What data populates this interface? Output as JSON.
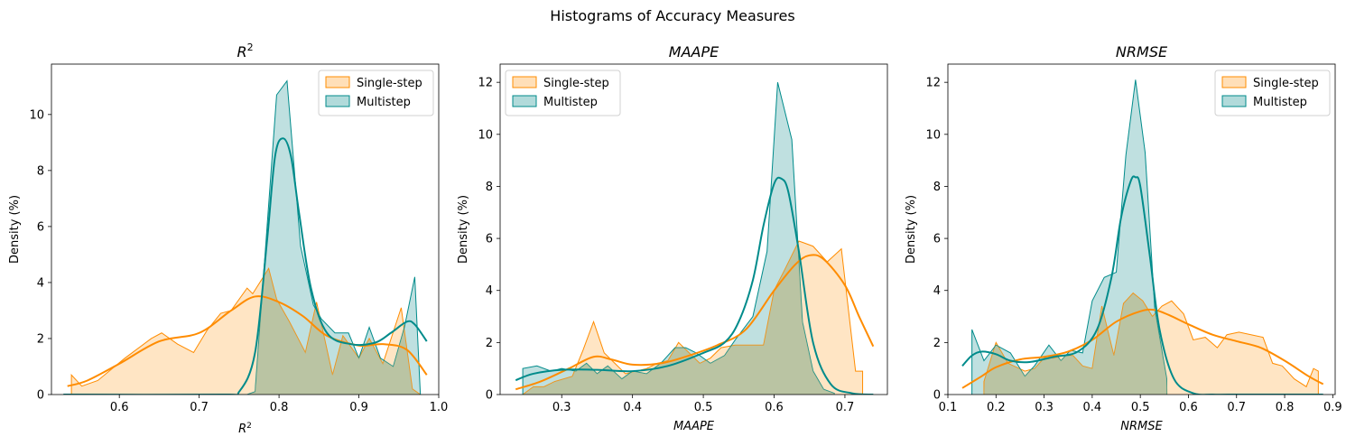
{
  "figure": {
    "suptitle": "Histograms of Accuracy Measures"
  },
  "colors": {
    "single_step_fill": "#ffdcb0",
    "single_step_line": "#ff8c00",
    "multistep_fill": "#a9d6d6",
    "multistep_line": "#008b8b"
  },
  "chart_data": [
    {
      "type": "area",
      "title": "R^2",
      "title_main": "R",
      "title_sup": "2",
      "xlabel": "R^2",
      "xlabel_main": "R",
      "xlabel_sup": "2",
      "ylabel": "Density (%)",
      "xlim": [
        0.515,
        1.0
      ],
      "ylim": [
        0,
        11.8
      ],
      "xticks": [
        0.6,
        0.7,
        0.8,
        0.9,
        1.0
      ],
      "xtick_labels": [
        "0.6",
        "0.7",
        "0.8",
        "0.9",
        "1.0"
      ],
      "yticks": [
        0,
        2,
        4,
        6,
        8,
        10
      ],
      "ytick_labels": [
        "0",
        "2",
        "4",
        "6",
        "8",
        "10"
      ],
      "legend_position": "upper right",
      "series": [
        {
          "name": "Single-step",
          "histogram": {
            "x": [
              0.54,
              0.54,
              0.553,
              0.573,
              0.607,
              0.64,
              0.653,
              0.673,
              0.693,
              0.71,
              0.727,
              0.74,
              0.76,
              0.767,
              0.787,
              0.797,
              0.813,
              0.833,
              0.847,
              0.867,
              0.88,
              0.9,
              0.913,
              0.93,
              0.953,
              0.967,
              0.977
            ],
            "y": [
              0,
              0.7,
              0.3,
              0.5,
              1.3,
              2.0,
              2.2,
              1.8,
              1.5,
              2.3,
              2.9,
              3.0,
              3.8,
              3.6,
              4.5,
              3.4,
              2.6,
              1.5,
              3.3,
              0.7,
              2.1,
              1.3,
              2.0,
              1.1,
              3.1,
              0.2,
              0
            ]
          },
          "kde": {
            "x": [
              0.535,
              0.56,
              0.6,
              0.65,
              0.7,
              0.74,
              0.77,
              0.8,
              0.83,
              0.86,
              0.9,
              0.93,
              0.96,
              0.985
            ],
            "y": [
              0.3,
              0.5,
              1.1,
              1.9,
              2.2,
              3.0,
              3.5,
              3.3,
              2.8,
              2.1,
              1.75,
              1.8,
              1.6,
              0.7
            ]
          }
        },
        {
          "name": "Multistep",
          "histogram": {
            "x": [
              0.53,
              0.76,
              0.77,
              0.797,
              0.81,
              0.827,
              0.843,
              0.853,
              0.87,
              0.887,
              0.9,
              0.913,
              0.927,
              0.943,
              0.957,
              0.97,
              0.977
            ],
            "y": [
              0,
              0,
              0.1,
              10.7,
              11.2,
              5.3,
              3.2,
              2.7,
              2.2,
              2.2,
              1.3,
              2.4,
              1.3,
              1.0,
              2.4,
              4.2,
              0
            ]
          },
          "kde": {
            "x": [
              0.53,
              0.73,
              0.75,
              0.77,
              0.785,
              0.795,
              0.805,
              0.815,
              0.825,
              0.84,
              0.86,
              0.89,
              0.92,
              0.94,
              0.96,
              0.97,
              0.985
            ],
            "y": [
              0,
              0,
              0.1,
              1.5,
              5.5,
              8.5,
              9.15,
              8.5,
              6.5,
              3.8,
              2.2,
              1.8,
              1.85,
              2.2,
              2.6,
              2.5,
              1.9
            ]
          }
        }
      ]
    },
    {
      "type": "area",
      "title": "MAAPE",
      "xlabel": "MAAPE",
      "ylabel": "Density (%)",
      "xlim": [
        0.213,
        0.76
      ],
      "ylim": [
        0,
        12.7
      ],
      "xticks": [
        0.3,
        0.4,
        0.5,
        0.6,
        0.7
      ],
      "xtick_labels": [
        "0.3",
        "0.4",
        "0.5",
        "0.6",
        "0.7"
      ],
      "yticks": [
        0,
        2,
        4,
        6,
        8,
        10,
        12
      ],
      "ytick_labels": [
        "0",
        "2",
        "4",
        "6",
        "8",
        "10",
        "12"
      ],
      "legend_position": "upper left",
      "series": [
        {
          "name": "Single-step",
          "histogram": {
            "x": [
              0.245,
              0.26,
              0.275,
              0.29,
              0.315,
              0.33,
              0.345,
              0.36,
              0.375,
              0.39,
              0.405,
              0.42,
              0.435,
              0.45,
              0.465,
              0.48,
              0.495,
              0.51,
              0.525,
              0.545,
              0.565,
              0.585,
              0.6,
              0.615,
              0.635,
              0.655,
              0.675,
              0.695,
              0.715,
              0.725,
              0.725
            ],
            "y": [
              0,
              0.3,
              0.3,
              0.5,
              0.7,
              1.7,
              2.8,
              1.6,
              1.2,
              0.8,
              0.9,
              1.0,
              1.2,
              1.3,
              2.0,
              1.6,
              1.2,
              1.4,
              1.8,
              1.9,
              1.9,
              1.9,
              4.0,
              4.8,
              5.9,
              5.7,
              5.1,
              5.6,
              0.9,
              0.9,
              0
            ]
          },
          "kde": {
            "x": [
              0.235,
              0.27,
              0.31,
              0.345,
              0.37,
              0.4,
              0.44,
              0.48,
              0.52,
              0.56,
              0.6,
              0.63,
              0.65,
              0.67,
              0.7,
              0.72,
              0.74
            ],
            "y": [
              0.2,
              0.5,
              1.0,
              1.45,
              1.35,
              1.15,
              1.2,
              1.5,
              1.9,
              2.5,
              4.0,
              5.0,
              5.35,
              5.2,
              4.2,
              3.0,
              1.85
            ]
          }
        },
        {
          "name": "Multistep",
          "histogram": {
            "x": [
              0.245,
              0.245,
              0.265,
              0.285,
              0.3,
              0.32,
              0.335,
              0.35,
              0.365,
              0.385,
              0.4,
              0.42,
              0.44,
              0.46,
              0.475,
              0.49,
              0.51,
              0.53,
              0.545,
              0.57,
              0.59,
              0.605,
              0.625,
              0.64,
              0.655,
              0.67,
              0.685,
              0.685
            ],
            "y": [
              0,
              1.0,
              1.1,
              0.9,
              1.0,
              0.9,
              1.2,
              0.8,
              1.1,
              0.6,
              0.9,
              0.8,
              1.2,
              1.8,
              1.8,
              1.6,
              1.2,
              1.5,
              2.1,
              3.0,
              5.5,
              12.0,
              9.8,
              2.8,
              0.9,
              0.2,
              0.05,
              0
            ]
          },
          "kde": {
            "x": [
              0.235,
              0.26,
              0.3,
              0.35,
              0.4,
              0.45,
              0.5,
              0.53,
              0.55,
              0.57,
              0.585,
              0.6,
              0.61,
              0.62,
              0.635,
              0.655,
              0.68,
              0.71,
              0.74
            ],
            "y": [
              0.55,
              0.8,
              0.95,
              0.95,
              0.9,
              1.1,
              1.6,
              2.0,
              2.8,
              4.4,
              6.5,
              8.1,
              8.3,
              7.8,
              5.5,
              2.0,
              0.4,
              0.05,
              0
            ]
          }
        }
      ]
    },
    {
      "type": "area",
      "title": "NRMSE",
      "xlabel": "NRMSE",
      "ylabel": "Density (%)",
      "xlim": [
        0.1,
        0.905
      ],
      "ylim": [
        0,
        12.7
      ],
      "xticks": [
        0.1,
        0.2,
        0.3,
        0.4,
        0.5,
        0.6,
        0.7,
        0.8,
        0.9
      ],
      "xtick_labels": [
        "0.1",
        "0.2",
        "0.3",
        "0.4",
        "0.5",
        "0.6",
        "0.7",
        "0.8",
        "0.9"
      ],
      "yticks": [
        0,
        2,
        4,
        6,
        8,
        10,
        12
      ],
      "ytick_labels": [
        "0",
        "2",
        "4",
        "6",
        "8",
        "10",
        "12"
      ],
      "legend_position": "upper right",
      "series": [
        {
          "name": "Single-step",
          "histogram": {
            "x": [
              0.175,
              0.175,
              0.2,
              0.225,
              0.26,
              0.28,
              0.3,
              0.32,
              0.34,
              0.36,
              0.38,
              0.4,
              0.42,
              0.445,
              0.465,
              0.485,
              0.505,
              0.525,
              0.545,
              0.565,
              0.59,
              0.61,
              0.635,
              0.66,
              0.68,
              0.705,
              0.73,
              0.755,
              0.775,
              0.795,
              0.82,
              0.845,
              0.86,
              0.87,
              0.87
            ],
            "y": [
              0,
              0.5,
              2.0,
              1.2,
              0.9,
              1.0,
              1.4,
              1.4,
              1.5,
              1.5,
              1.1,
              1.0,
              3.4,
              1.5,
              3.5,
              3.9,
              3.6,
              3.0,
              3.4,
              3.6,
              3.1,
              2.1,
              2.2,
              1.8,
              2.3,
              2.4,
              2.3,
              2.2,
              1.2,
              1.1,
              0.6,
              0.3,
              1.0,
              0.9,
              0
            ]
          },
          "kde": {
            "x": [
              0.13,
              0.17,
              0.2,
              0.25,
              0.3,
              0.35,
              0.4,
              0.45,
              0.5,
              0.53,
              0.56,
              0.6,
              0.65,
              0.7,
              0.75,
              0.8,
              0.85,
              0.88
            ],
            "y": [
              0.25,
              0.7,
              1.05,
              1.35,
              1.45,
              1.65,
              2.1,
              2.8,
              3.2,
              3.25,
              3.05,
              2.7,
              2.3,
              2.05,
              1.8,
              1.3,
              0.7,
              0.4
            ]
          }
        },
        {
          "name": "Multistep",
          "histogram": {
            "x": [
              0.15,
              0.15,
              0.175,
              0.2,
              0.23,
              0.26,
              0.28,
              0.31,
              0.335,
              0.355,
              0.38,
              0.4,
              0.425,
              0.45,
              0.47,
              0.49,
              0.51,
              0.53,
              0.555,
              0.555
            ],
            "y": [
              0,
              2.5,
              1.3,
              1.9,
              1.6,
              0.7,
              1.1,
              1.9,
              1.3,
              1.7,
              1.6,
              3.6,
              4.5,
              4.7,
              9.2,
              12.1,
              9.3,
              3.3,
              0.6,
              0
            ]
          },
          "kde": {
            "x": [
              0.13,
              0.15,
              0.17,
              0.2,
              0.23,
              0.27,
              0.32,
              0.37,
              0.41,
              0.44,
              0.46,
              0.48,
              0.49,
              0.5,
              0.52,
              0.54,
              0.57,
              0.61,
              0.65,
              0.7,
              0.75,
              0.8,
              0.88
            ],
            "y": [
              1.1,
              1.5,
              1.65,
              1.55,
              1.3,
              1.25,
              1.45,
              1.65,
              2.5,
              4.5,
              6.8,
              8.2,
              8.35,
              8.0,
              5.3,
              2.5,
              0.6,
              0.05,
              0,
              0,
              0,
              0,
              0
            ]
          }
        }
      ]
    }
  ]
}
